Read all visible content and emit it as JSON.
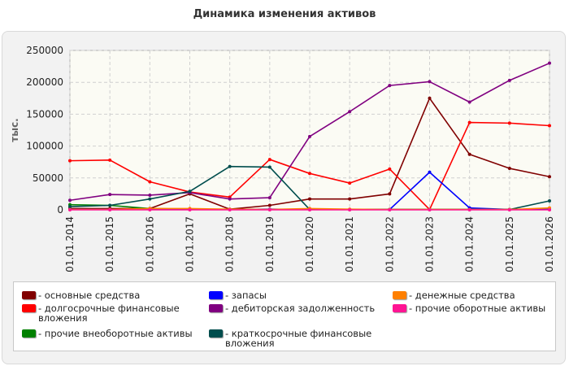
{
  "title": "Динамика изменения активов",
  "chart_data": {
    "type": "line",
    "title": "Динамика изменения активов",
    "xlabel": "",
    "ylabel": "тыс.",
    "ylim": [
      0,
      250000
    ],
    "yticks": [
      "0",
      "50000",
      "100000",
      "150000",
      "200000",
      "250000"
    ],
    "yticks_values": [
      0,
      50000,
      100000,
      150000,
      200000,
      250000
    ],
    "grid": true,
    "legend_position": "bottom",
    "categories": [
      "01.01.2014",
      "01.01.2015",
      "01.01.2016",
      "01.01.2017",
      "01.01.2018",
      "01.01.2019",
      "01.01.2020",
      "01.01.2021",
      "01.01.2022",
      "01.01.2023",
      "01.01.2024",
      "01.01.2025",
      "01.01.2026"
    ],
    "series": [
      {
        "name": "основные средства",
        "color": "#800000",
        "values": [
          2000,
          2000,
          2000,
          25000,
          1000,
          7000,
          17000,
          17000,
          25000,
          175000,
          87000,
          65000,
          52000
        ]
      },
      {
        "name": "долгосрочные финансовые вложения",
        "color": "#ff0000",
        "values": [
          77000,
          78000,
          44000,
          28000,
          20000,
          79000,
          57000,
          42000,
          64000,
          500,
          137000,
          136000,
          132000
        ]
      },
      {
        "name": "прочие внеоборотные активы",
        "color": "#008000",
        "values": [
          8000,
          7000,
          2000,
          1000,
          500,
          500,
          500,
          500,
          500,
          500,
          500,
          500,
          500
        ]
      },
      {
        "name": "запасы",
        "color": "#0000ff",
        "values": [
          500,
          500,
          500,
          500,
          500,
          1000,
          500,
          500,
          500,
          59000,
          3000,
          500,
          500
        ]
      },
      {
        "name": "дебиторская задолженность",
        "color": "#800080",
        "values": [
          15000,
          24000,
          23000,
          27000,
          17000,
          19000,
          115000,
          154000,
          195000,
          201000,
          169000,
          203000,
          230000
        ]
      },
      {
        "name": "краткосрочные финансовые вложения",
        "color": "#004d4d",
        "values": [
          5000,
          7000,
          17000,
          29000,
          68000,
          67000,
          500,
          500,
          500,
          500,
          500,
          500,
          14000
        ]
      },
      {
        "name": "денежные средства",
        "color": "#ff8000",
        "values": [
          500,
          500,
          2000,
          2000,
          1000,
          500,
          2000,
          1000,
          500,
          500,
          500,
          500,
          3000
        ]
      },
      {
        "name": "прочие оборотные активы",
        "color": "#ff1493",
        "values": [
          0,
          0,
          0,
          0,
          0,
          0,
          0,
          0,
          0,
          0,
          0,
          0,
          0
        ]
      }
    ]
  }
}
